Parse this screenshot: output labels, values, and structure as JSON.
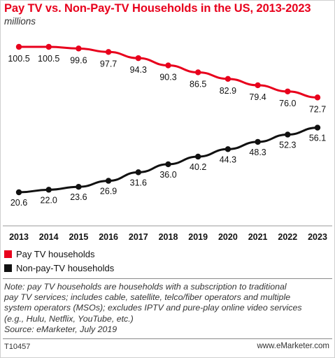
{
  "header": {
    "title": "Pay TV vs. Non-Pay-TV Households in the US, 2013-2023",
    "subtitle": "millions"
  },
  "chart_data": {
    "type": "line",
    "x": [
      "2013",
      "2014",
      "2015",
      "2016",
      "2017",
      "2018",
      "2019",
      "2020",
      "2021",
      "2022",
      "2023"
    ],
    "series": [
      {
        "name": "Pay TV households",
        "color": "#e8001c",
        "values": [
          100.5,
          100.5,
          99.6,
          97.7,
          94.3,
          90.3,
          86.5,
          82.9,
          79.4,
          76.0,
          72.7
        ],
        "labels": [
          "100.5",
          "100.5",
          "99.6",
          "97.7",
          "94.3",
          "90.3",
          "86.5",
          "82.9",
          "79.4",
          "76.0",
          "72.7"
        ]
      },
      {
        "name": "Non-pay-TV households",
        "color": "#111111",
        "values": [
          20.6,
          22.0,
          23.6,
          26.9,
          31.6,
          36.0,
          40.2,
          44.3,
          48.3,
          52.3,
          56.1
        ],
        "labels": [
          "20.6",
          "22.0",
          "23.6",
          "26.9",
          "31.6",
          "36.0",
          "40.2",
          "44.3",
          "48.3",
          "52.3",
          "56.1"
        ]
      }
    ],
    "grid": false,
    "legend": "bottom-left"
  },
  "note": {
    "lines": [
      "Note: pay TV households are households with a subscription to traditional",
      "pay TV services; includes cable, satellite, telco/fiber operators and multiple",
      "system operators (MSOs); excludes IPTV and pure-play online video services",
      "(e.g., Hulu, Netflix, YouTube, etc.)",
      "Source: eMarketer, July 2019"
    ]
  },
  "footer": {
    "code": "T10457",
    "site": "www.eMarketer.com"
  }
}
